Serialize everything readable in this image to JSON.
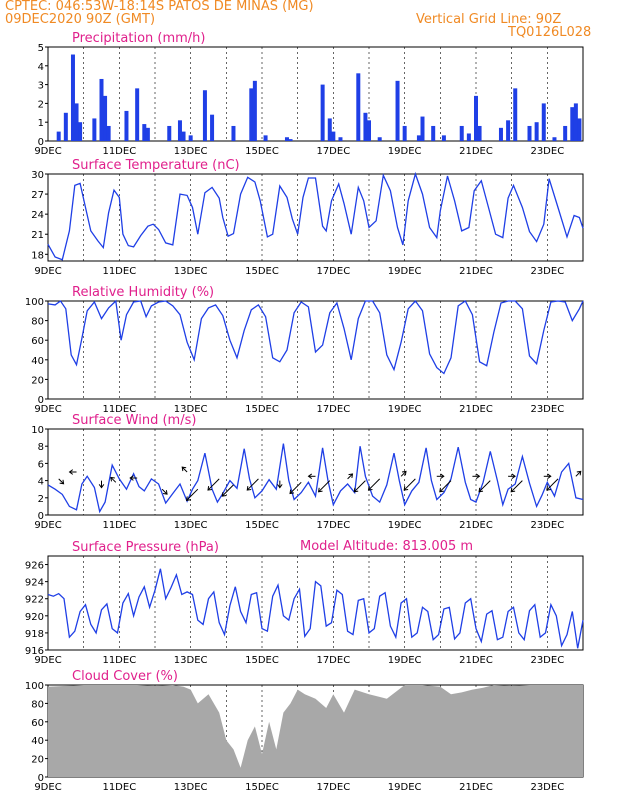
{
  "header": {
    "line1": "CPTEC:  046:53W-18:14S  PATOS DE MINAS (MG)",
    "line2": "09DEC2020 90Z (GMT)",
    "grid_note": "Vertical Grid Line: 90Z",
    "code": "TQ0126L028",
    "model_altitude": "Model Altitude: 813.005 m"
  },
  "colors": {
    "header": "#f08a24",
    "panel_title": "#e0208c",
    "series": "#1f3fe6",
    "cloud": "#a8a8a8",
    "wind_arrow": "#000000"
  },
  "x_ticks": [
    "9DEC",
    "11DEC",
    "13DEC",
    "15DEC",
    "17DEC",
    "19DEC",
    "21DEC",
    "23DEC"
  ],
  "chart_data": [
    {
      "type": "bar",
      "title": "Precipitation (mm/h)",
      "ylim": [
        0,
        5
      ],
      "yticks": [
        0,
        1,
        2,
        3,
        4,
        5
      ],
      "x_range_days": [
        9,
        24
      ],
      "x": [
        9.3,
        9.5,
        9.7,
        9.8,
        9.9,
        10.3,
        10.5,
        10.6,
        10.7,
        11.2,
        11.5,
        11.7,
        11.8,
        12.4,
        12.7,
        12.8,
        13.0,
        13.4,
        13.6,
        14.2,
        14.7,
        14.8,
        15.1,
        15.7,
        15.8,
        16.7,
        16.9,
        17.0,
        17.2,
        17.7,
        17.9,
        18.0,
        18.3,
        18.8,
        19.0,
        19.4,
        19.5,
        19.8,
        20.1,
        20.6,
        20.8,
        21.0,
        21.1,
        21.7,
        21.9,
        22.1,
        22.5,
        22.7,
        22.9,
        23.2,
        23.5,
        23.7,
        23.8,
        23.9
      ],
      "values": [
        0.5,
        1.5,
        4.6,
        2.0,
        1.0,
        1.2,
        3.3,
        2.4,
        0.8,
        1.6,
        2.8,
        0.9,
        0.7,
        0.8,
        1.1,
        0.5,
        0.3,
        2.7,
        1.4,
        0.8,
        2.8,
        3.2,
        0.3,
        0.2,
        0.1,
        3.0,
        1.2,
        0.5,
        0.2,
        3.6,
        1.5,
        1.1,
        0.2,
        3.2,
        0.8,
        0.3,
        1.3,
        0.8,
        0.3,
        0.8,
        0.4,
        2.4,
        0.8,
        0.7,
        1.1,
        2.8,
        0.8,
        1.0,
        2.0,
        0.2,
        0.8,
        1.8,
        2.0,
        1.2
      ]
    },
    {
      "type": "line",
      "title": "Surface Temperature (nC)",
      "ylim": [
        17,
        30
      ],
      "yticks": [
        18,
        21,
        24,
        27,
        30
      ],
      "x": [
        9.0,
        9.2,
        9.4,
        9.6,
        9.75,
        9.9,
        10.05,
        10.2,
        10.4,
        10.55,
        10.7,
        10.85,
        11.0,
        11.1,
        11.25,
        11.4,
        11.6,
        11.8,
        11.95,
        12.1,
        12.3,
        12.5,
        12.7,
        12.9,
        13.05,
        13.2,
        13.4,
        13.6,
        13.8,
        13.9,
        14.05,
        14.2,
        14.4,
        14.6,
        14.8,
        14.95,
        15.15,
        15.3,
        15.5,
        15.7,
        15.85,
        16.0,
        16.15,
        16.3,
        16.5,
        16.7,
        16.8,
        16.95,
        17.15,
        17.3,
        17.5,
        17.7,
        17.85,
        18.0,
        18.2,
        18.4,
        18.6,
        18.8,
        18.95,
        19.1,
        19.3,
        19.5,
        19.7,
        19.9,
        20.0,
        20.2,
        20.4,
        20.6,
        20.8,
        20.95,
        21.15,
        21.35,
        21.55,
        21.75,
        21.9,
        22.05,
        22.3,
        22.5,
        22.7,
        22.9,
        23.05,
        23.3,
        23.55,
        23.75,
        23.9,
        24.0
      ],
      "values": [
        19.5,
        17.6,
        17.2,
        21.5,
        28.3,
        28.6,
        25.0,
        21.5,
        20.0,
        19.0,
        24.2,
        27.6,
        26.5,
        21.0,
        19.3,
        19.1,
        20.8,
        22.2,
        22.5,
        21.7,
        19.7,
        19.4,
        27.0,
        26.8,
        25.0,
        21.0,
        27.2,
        28.0,
        26.4,
        23.5,
        20.7,
        21.1,
        27.0,
        29.5,
        28.8,
        26.0,
        20.6,
        21.0,
        28.2,
        26.5,
        23.3,
        21.0,
        26.5,
        29.4,
        29.4,
        22.2,
        21.5,
        26.0,
        28.5,
        25.6,
        21.0,
        28.0,
        26.0,
        22.0,
        23.0,
        29.8,
        27.5,
        22.0,
        19.4,
        26.0,
        30.0,
        27.0,
        22.0,
        20.5,
        24.5,
        29.7,
        26.0,
        21.5,
        22.0,
        27.5,
        29.0,
        25.0,
        21.0,
        20.5,
        26.4,
        28.3,
        25.0,
        21.4,
        19.9,
        22.5,
        29.3,
        25.0,
        20.6,
        23.8,
        23.5,
        21.9
      ]
    },
    {
      "type": "line",
      "title": "Relative Humidity (%)",
      "ylim": [
        0,
        100
      ],
      "yticks": [
        0,
        20,
        40,
        60,
        80,
        100
      ],
      "x": [
        9.0,
        9.2,
        9.35,
        9.5,
        9.65,
        9.8,
        9.95,
        10.1,
        10.3,
        10.5,
        10.7,
        10.9,
        11.05,
        11.2,
        11.4,
        11.6,
        11.75,
        11.9,
        12.1,
        12.3,
        12.5,
        12.7,
        12.9,
        13.1,
        13.3,
        13.5,
        13.7,
        13.9,
        14.1,
        14.3,
        14.5,
        14.7,
        14.9,
        15.1,
        15.3,
        15.5,
        15.7,
        15.9,
        16.1,
        16.3,
        16.5,
        16.7,
        16.9,
        17.1,
        17.3,
        17.5,
        17.7,
        17.9,
        18.1,
        18.3,
        18.5,
        18.7,
        18.9,
        19.1,
        19.3,
        19.5,
        19.7,
        19.9,
        20.1,
        20.3,
        20.5,
        20.7,
        20.9,
        21.1,
        21.3,
        21.5,
        21.7,
        21.9,
        22.1,
        22.3,
        22.5,
        22.7,
        22.9,
        23.1,
        23.3,
        23.5,
        23.7,
        23.9,
        24.0
      ],
      "values": [
        97,
        96,
        100,
        92,
        45,
        35,
        62,
        90,
        99,
        82,
        93,
        100,
        60,
        86,
        99,
        100,
        84,
        95,
        99,
        100,
        95,
        86,
        58,
        40,
        82,
        93,
        96,
        85,
        60,
        42,
        70,
        91,
        96,
        84,
        42,
        38,
        50,
        88,
        99,
        94,
        48,
        55,
        88,
        98,
        72,
        40,
        82,
        100,
        100,
        88,
        45,
        30,
        58,
        92,
        100,
        90,
        46,
        32,
        26,
        42,
        95,
        100,
        86,
        38,
        34,
        68,
        98,
        100,
        100,
        92,
        44,
        36,
        70,
        99,
        100,
        99,
        80,
        92,
        100
      ]
    },
    {
      "type": "line",
      "title": "Surface Wind (m/s)",
      "ylim": [
        0,
        10
      ],
      "yticks": [
        0,
        2,
        4,
        6,
        8,
        10
      ],
      "x": [
        9.0,
        9.2,
        9.4,
        9.6,
        9.8,
        9.95,
        10.1,
        10.3,
        10.45,
        10.6,
        10.8,
        11.0,
        11.2,
        11.4,
        11.55,
        11.7,
        11.9,
        12.1,
        12.3,
        12.5,
        12.7,
        12.9,
        13.05,
        13.2,
        13.4,
        13.6,
        13.75,
        13.9,
        14.1,
        14.3,
        14.5,
        14.65,
        14.8,
        15.0,
        15.2,
        15.4,
        15.6,
        15.75,
        15.9,
        16.1,
        16.3,
        16.5,
        16.7,
        16.85,
        17.0,
        17.2,
        17.4,
        17.6,
        17.75,
        17.9,
        18.1,
        18.3,
        18.5,
        18.7,
        18.85,
        19.0,
        19.2,
        19.4,
        19.6,
        19.75,
        19.9,
        20.1,
        20.3,
        20.5,
        20.7,
        20.85,
        21.0,
        21.2,
        21.4,
        21.6,
        21.75,
        21.9,
        22.1,
        22.3,
        22.5,
        22.7,
        22.85,
        23.0,
        23.2,
        23.4,
        23.6,
        23.8,
        24.0
      ],
      "values": [
        3.5,
        3.0,
        2.4,
        1.0,
        0.6,
        3.6,
        4.5,
        3.2,
        0.4,
        1.5,
        5.8,
        4.2,
        3.0,
        4.8,
        3.3,
        2.8,
        4.2,
        3.6,
        1.4,
        2.5,
        3.6,
        1.6,
        3.0,
        4.0,
        7.2,
        3.0,
        1.5,
        2.5,
        4.0,
        3.1,
        7.7,
        4.2,
        2.0,
        2.8,
        4.1,
        3.0,
        8.3,
        4.0,
        1.8,
        2.6,
        3.8,
        2.2,
        7.8,
        4.0,
        1.2,
        2.8,
        3.6,
        2.6,
        8.0,
        4.5,
        2.2,
        1.5,
        3.5,
        7.2,
        4.0,
        1.2,
        2.8,
        3.8,
        7.8,
        4.0,
        1.8,
        2.6,
        4.2,
        7.9,
        3.8,
        1.8,
        1.5,
        3.8,
        7.4,
        4.0,
        1.2,
        3.0,
        3.6,
        6.8,
        3.7,
        1.0,
        2.3,
        3.8,
        2.2,
        5.0,
        6.0,
        2.0,
        1.8
      ]
    },
    {
      "type": "line",
      "title": "Surface Pressure (hPa)",
      "ylim": [
        916,
        927
      ],
      "yticks": [
        916,
        918,
        920,
        922,
        924,
        926
      ],
      "x": [
        9.0,
        9.15,
        9.3,
        9.45,
        9.6,
        9.75,
        9.9,
        10.05,
        10.2,
        10.35,
        10.5,
        10.65,
        10.8,
        10.95,
        11.1,
        11.25,
        11.4,
        11.55,
        11.7,
        11.85,
        12.0,
        12.15,
        12.3,
        12.45,
        12.6,
        12.75,
        12.9,
        13.05,
        13.2,
        13.35,
        13.5,
        13.65,
        13.8,
        13.95,
        14.1,
        14.25,
        14.4,
        14.55,
        14.7,
        14.85,
        15.0,
        15.15,
        15.3,
        15.45,
        15.6,
        15.75,
        15.9,
        16.05,
        16.2,
        16.35,
        16.5,
        16.65,
        16.8,
        16.95,
        17.1,
        17.25,
        17.4,
        17.55,
        17.7,
        17.85,
        18.0,
        18.15,
        18.3,
        18.45,
        18.6,
        18.75,
        18.9,
        19.05,
        19.2,
        19.35,
        19.5,
        19.65,
        19.8,
        19.95,
        20.1,
        20.25,
        20.4,
        20.55,
        20.7,
        20.85,
        21.0,
        21.15,
        21.3,
        21.45,
        21.6,
        21.75,
        21.9,
        22.05,
        22.2,
        22.35,
        22.5,
        22.65,
        22.8,
        22.95,
        23.1,
        23.25,
        23.4,
        23.55,
        23.7,
        23.85,
        24.0
      ],
      "values": [
        922.5,
        922.3,
        922.6,
        922.0,
        917.5,
        918.2,
        920.5,
        921.3,
        919.0,
        918.0,
        920.7,
        921.4,
        918.5,
        918.0,
        921.5,
        922.6,
        920.0,
        922.2,
        923.4,
        921.0,
        923.0,
        925.5,
        922.0,
        923.3,
        924.8,
        922.5,
        922.8,
        922.5,
        919.5,
        919.0,
        922.0,
        922.8,
        919.2,
        917.8,
        921.2,
        923.4,
        920.5,
        919.2,
        922.5,
        922.7,
        918.5,
        918.2,
        922.3,
        923.6,
        920.0,
        919.5,
        922.0,
        923.1,
        917.6,
        918.5,
        924.0,
        923.5,
        918.8,
        919.2,
        923.0,
        922.5,
        918.2,
        917.8,
        921.8,
        922.0,
        918.0,
        918.5,
        922.3,
        922.7,
        918.8,
        917.5,
        921.5,
        922.0,
        917.5,
        918.0,
        921.0,
        920.5,
        917.2,
        917.8,
        920.8,
        921.0,
        917.3,
        918.0,
        921.5,
        922.0,
        918.5,
        917.0,
        920.2,
        920.6,
        917.2,
        917.5,
        920.5,
        921.0,
        918.0,
        917.2,
        920.6,
        921.3,
        917.5,
        918.0,
        921.3,
        920.0,
        916.5,
        917.8,
        920.5,
        916.2,
        919.5
      ]
    },
    {
      "type": "area",
      "title": "Cloud Cover (%)",
      "ylim": [
        0,
        100
      ],
      "yticks": [
        0,
        20,
        40,
        60,
        80,
        100
      ],
      "x": [
        9.0,
        9.5,
        10.0,
        10.5,
        11.0,
        11.5,
        12.0,
        12.5,
        12.8,
        13.0,
        13.2,
        13.5,
        13.8,
        14.0,
        14.2,
        14.4,
        14.6,
        14.8,
        15.0,
        15.2,
        15.4,
        15.6,
        15.8,
        16.0,
        16.2,
        16.5,
        16.8,
        17.0,
        17.3,
        17.6,
        18.0,
        18.5,
        19.0,
        19.5,
        20.0,
        20.3,
        20.6,
        20.9,
        21.2,
        21.5,
        22.0,
        22.5,
        23.0,
        23.5,
        24.0
      ],
      "values": [
        98,
        99,
        100,
        100,
        100,
        100,
        99,
        100,
        98,
        95,
        80,
        90,
        70,
        40,
        30,
        10,
        40,
        55,
        25,
        60,
        30,
        70,
        80,
        95,
        90,
        85,
        75,
        90,
        70,
        95,
        90,
        85,
        100,
        100,
        98,
        90,
        92,
        95,
        97,
        100,
        99,
        100,
        100,
        100,
        100
      ]
    }
  ],
  "wind_vectors": [
    {
      "x": 9.3,
      "y": 4.2,
      "dir": "down-right"
    },
    {
      "x": 9.8,
      "y": 5.0,
      "dir": "left"
    },
    {
      "x": 10.5,
      "y": 4.0,
      "dir": "down"
    },
    {
      "x": 10.9,
      "y": 3.8,
      "dir": "up-left"
    },
    {
      "x": 11.5,
      "y": 4.3,
      "dir": "left"
    },
    {
      "x": 12.2,
      "y": 3.0,
      "dir": "down-right"
    },
    {
      "x": 12.9,
      "y": 5.0,
      "dir": "up-left"
    },
    {
      "x": 13.2,
      "y": 3.0,
      "dir": "down-left"
    },
    {
      "x": 13.8,
      "y": 4.2,
      "dir": "down-left"
    },
    {
      "x": 14.2,
      "y": 3.5,
      "dir": "down-left"
    },
    {
      "x": 14.9,
      "y": 4.2,
      "dir": "down-left"
    },
    {
      "x": 15.5,
      "y": 4.0,
      "dir": "down"
    },
    {
      "x": 16.1,
      "y": 3.8,
      "dir": "down-left"
    },
    {
      "x": 16.5,
      "y": 4.5,
      "dir": "left"
    },
    {
      "x": 16.9,
      "y": 4.0,
      "dir": "down-left"
    },
    {
      "x": 17.4,
      "y": 4.2,
      "dir": "up-right"
    },
    {
      "x": 17.9,
      "y": 4.0,
      "dir": "down-left"
    },
    {
      "x": 18.3,
      "y": 4.2,
      "dir": "down-left"
    },
    {
      "x": 18.9,
      "y": 4.5,
      "dir": "up-right"
    },
    {
      "x": 19.3,
      "y": 4.2,
      "dir": "down-left"
    },
    {
      "x": 19.9,
      "y": 4.5,
      "dir": "right"
    },
    {
      "x": 20.3,
      "y": 4.0,
      "dir": "down-left"
    },
    {
      "x": 20.9,
      "y": 4.5,
      "dir": "right"
    },
    {
      "x": 21.4,
      "y": 4.0,
      "dir": "down-left"
    },
    {
      "x": 21.9,
      "y": 4.5,
      "dir": "right"
    },
    {
      "x": 22.3,
      "y": 4.0,
      "dir": "down-left"
    },
    {
      "x": 22.9,
      "y": 4.5,
      "dir": "right"
    },
    {
      "x": 23.3,
      "y": 4.2,
      "dir": "down-left"
    },
    {
      "x": 23.8,
      "y": 4.5,
      "dir": "up-right"
    }
  ]
}
